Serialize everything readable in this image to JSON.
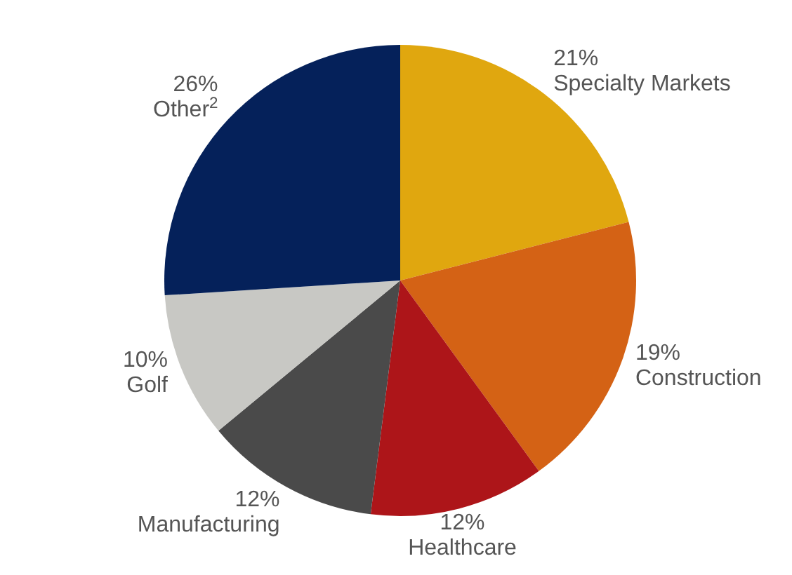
{
  "chart_data": {
    "type": "pie",
    "categories": [
      "Specialty Markets",
      "Construction",
      "Healthcare",
      "Manufacturing",
      "Golf",
      "Other$^{2}$"
    ],
    "values": [
      21,
      19,
      12,
      12,
      10,
      26
    ],
    "value_labels": [
      "21%",
      "19%",
      "12%",
      "12%",
      "10%",
      "26%"
    ],
    "colors": [
      "#e0a70f",
      "#d46215",
      "#ad1519",
      "#4a4a4a",
      "#c8c8c4",
      "#05215a"
    ]
  }
}
